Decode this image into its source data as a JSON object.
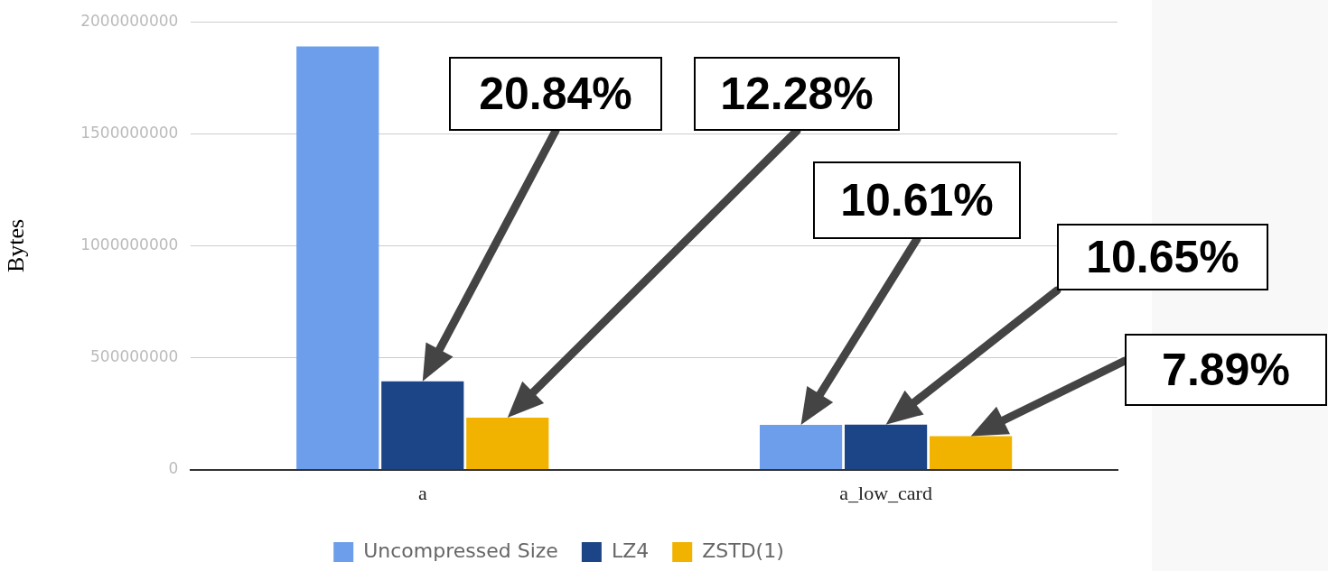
{
  "chart_data": {
    "type": "bar",
    "ylabel": "Bytes",
    "categories": [
      "a",
      "a_low_card"
    ],
    "series": [
      {
        "name": "Uncompressed Size",
        "color": "#6d9eeb",
        "values": [
          1890000000,
          200000000
        ]
      },
      {
        "name": "LZ4",
        "color": "#1c4587",
        "values": [
          394000000,
          201000000
        ]
      },
      {
        "name": "ZSTD(1)",
        "color": "#f1b300",
        "values": [
          232000000,
          149000000
        ]
      }
    ],
    "ylim": [
      0,
      2000000000
    ],
    "yticks": [
      0,
      500000000,
      1000000000,
      1500000000,
      2000000000
    ],
    "grid": "y",
    "legend": "bottom",
    "annotations": [
      "20.84%",
      "12.28%",
      "10.61%",
      "10.65%",
      "7.89%"
    ]
  }
}
